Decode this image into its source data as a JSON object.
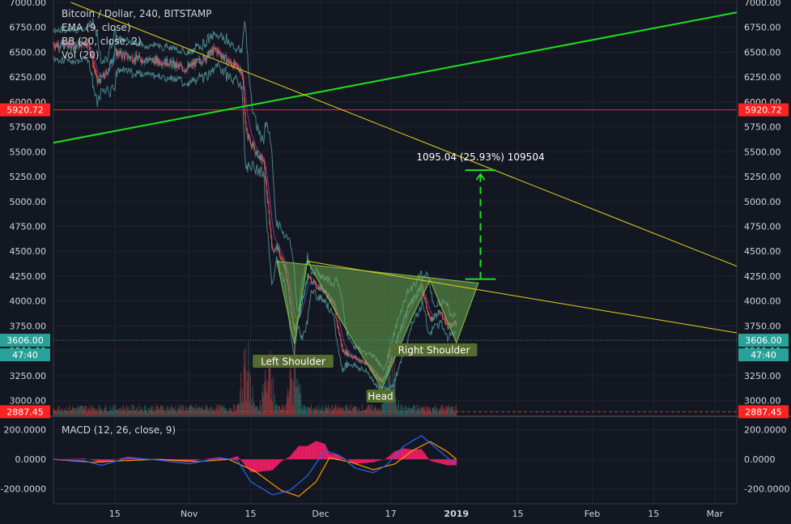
{
  "header": {
    "title": "Bitcoin / Dollar, 240, BITSTAMP",
    "indicators": [
      "EMA (9, close)",
      "BB (20, close, 2)",
      "Vol (20)"
    ]
  },
  "macd_title": "MACD (12, 26, close, 9)",
  "colors": {
    "background": "#131722",
    "grid": "#1f2330",
    "axis_text": "#d1d4dc",
    "up_candle": "#26a69a",
    "down_candle": "#ef5350",
    "green_trendline": "#1ee01e",
    "yellow_trendline": "#e6d21a",
    "horizontal_red": "#ff2222",
    "pattern_fill": "#6aa84f",
    "measure": "#22dd22",
    "label_bg": "#556b2f",
    "current_price": "#2aa198",
    "macd_line": "#2962ff",
    "signal_line": "#ff9800",
    "histogram": "#e91e63"
  },
  "chart_data": [
    {
      "type": "candlestick",
      "title": "Bitcoin / Dollar, 240, BITSTAMP",
      "y_ticks": [
        7000,
        6750,
        6500,
        6250,
        6000,
        5750,
        5500,
        5250,
        5000,
        4750,
        4500,
        4250,
        4000,
        3750,
        3500,
        3250,
        3000
      ],
      "y_tick_labels": [
        "7000.00",
        "6750.00",
        "6500.00",
        "6250.00",
        "6000.00",
        "5750.00",
        "5500.00",
        "5250.00",
        "5000.00",
        "4750.00",
        "4500.00",
        "4250.00",
        "4000.00",
        "3750.00",
        "3500.00",
        "3250.00",
        "3000.00"
      ],
      "ylim": [
        2850,
        7000
      ],
      "x_ticks": [
        "15",
        "Nov",
        "15",
        "Dec",
        "17",
        "2019",
        "15",
        "Feb",
        "15",
        "Mar"
      ],
      "x_tick_dates": [
        "2018-10-15",
        "2018-11-01",
        "2018-11-15",
        "2018-12-01",
        "2018-12-17",
        "2019-01-01",
        "2019-01-15",
        "2019-02-01",
        "2019-02-15",
        "2019-03-01"
      ],
      "xlim": [
        "2018-10-01",
        "2019-03-06"
      ],
      "price_path": [
        [
          "2018-10-01",
          6580
        ],
        [
          "2018-10-05",
          6560
        ],
        [
          "2018-10-09",
          6600
        ],
        [
          "2018-10-11",
          6200
        ],
        [
          "2018-10-13",
          6280
        ],
        [
          "2018-10-15",
          6500
        ],
        [
          "2018-10-19",
          6440
        ],
        [
          "2018-10-23",
          6420
        ],
        [
          "2018-10-27",
          6400
        ],
        [
          "2018-10-31",
          6330
        ],
        [
          "2018-11-04",
          6430
        ],
        [
          "2018-11-07",
          6530
        ],
        [
          "2018-11-10",
          6400
        ],
        [
          "2018-11-13",
          6320
        ],
        [
          "2018-11-14",
          5700
        ],
        [
          "2018-11-16",
          5500
        ],
        [
          "2018-11-18",
          5400
        ],
        [
          "2018-11-19",
          4950
        ],
        [
          "2018-11-20",
          4500
        ],
        [
          "2018-11-21",
          4550
        ],
        [
          "2018-11-23",
          4300
        ],
        [
          "2018-11-25",
          3700
        ],
        [
          "2018-11-26",
          3850
        ],
        [
          "2018-11-28",
          4250
        ],
        [
          "2018-11-30",
          4150
        ],
        [
          "2018-12-02",
          4100
        ],
        [
          "2018-12-04",
          3950
        ],
        [
          "2018-12-06",
          3500
        ],
        [
          "2018-12-08",
          3450
        ],
        [
          "2018-12-10",
          3400
        ],
        [
          "2018-12-12",
          3350
        ],
        [
          "2018-12-15",
          3180
        ],
        [
          "2018-12-17",
          3400
        ],
        [
          "2018-12-19",
          3700
        ],
        [
          "2018-12-21",
          3950
        ],
        [
          "2018-12-24",
          4150
        ],
        [
          "2018-12-26",
          3800
        ],
        [
          "2018-12-28",
          3900
        ],
        [
          "2018-12-30",
          3750
        ],
        [
          "2019-01-01",
          3780
        ]
      ],
      "volume_peaks": [
        "2018-11-14",
        "2018-11-19",
        "2018-11-25",
        "2018-12-17"
      ],
      "horizontal_lines": [
        {
          "price": 5920.72,
          "label": "5920.72",
          "style": "solid"
        },
        {
          "price": 3606.0,
          "label": "3606.00",
          "style": "dotted"
        },
        {
          "price": 2887.45,
          "label": "2887.45",
          "style": "dashed"
        }
      ],
      "countdown_label": "47:40",
      "trendlines": [
        {
          "name": "green_support",
          "from": [
            "2018-10-01",
            5590
          ],
          "to": [
            "2019-03-06",
            6900
          ]
        },
        {
          "name": "yellow_downtrend",
          "from": [
            "2018-10-05",
            7000
          ],
          "to": [
            "2019-03-06",
            4350
          ]
        },
        {
          "name": "neckline",
          "from": [
            "2018-11-28",
            4400
          ],
          "to": [
            "2019-03-06",
            3680
          ]
        }
      ],
      "pattern": {
        "name": "inverse head and shoulders",
        "points": [
          [
            "2018-11-21",
            4400
          ],
          [
            "2018-11-25",
            3570
          ],
          [
            "2018-11-28",
            4400
          ],
          [
            "2018-12-05",
            3850
          ],
          [
            "2018-12-15",
            3120
          ],
          [
            "2018-12-22",
            3850
          ],
          [
            "2018-12-26",
            4210
          ],
          [
            "2019-01-01",
            3580
          ],
          [
            "2019-01-06",
            4180
          ]
        ],
        "labels": {
          "left": "Left Shoulder",
          "head": "Head",
          "right": "Right Shoulder"
        }
      },
      "measurement": {
        "from_price": 4220,
        "to_price": 5315,
        "date_start": "2019-01-03",
        "date_end": "2019-01-10",
        "label": "1095.04 (25.93%) 109504"
      },
      "right_axis_countdown": "47:40"
    },
    {
      "type": "line",
      "title": "MACD (12, 26, close, 9)",
      "y_ticks": [
        200,
        0,
        -200
      ],
      "y_tick_labels": [
        "200.0000",
        "0.0000",
        "-200.0000"
      ],
      "ylim": [
        -300,
        280
      ],
      "series": [
        {
          "name": "MACD",
          "values": [
            [
              "2018-10-01",
              0
            ],
            [
              "2018-10-08",
              -10
            ],
            [
              "2018-10-12",
              -40
            ],
            [
              "2018-10-18",
              10
            ],
            [
              "2018-10-25",
              -5
            ],
            [
              "2018-11-01",
              -30
            ],
            [
              "2018-11-08",
              10
            ],
            [
              "2018-11-12",
              -5
            ],
            [
              "2018-11-15",
              -150
            ],
            [
              "2018-11-20",
              -240
            ],
            [
              "2018-11-24",
              -210
            ],
            [
              "2018-11-28",
              -110
            ],
            [
              "2018-12-02",
              60
            ],
            [
              "2018-12-05",
              30
            ],
            [
              "2018-12-09",
              -60
            ],
            [
              "2018-12-13",
              -90
            ],
            [
              "2018-12-16",
              -40
            ],
            [
              "2018-12-20",
              90
            ],
            [
              "2018-12-24",
              160
            ],
            [
              "2018-12-28",
              60
            ],
            [
              "2019-01-01",
              -40
            ]
          ]
        },
        {
          "name": "Signal",
          "values": [
            [
              "2018-10-01",
              0
            ],
            [
              "2018-10-10",
              -20
            ],
            [
              "2018-10-16",
              -10
            ],
            [
              "2018-10-25",
              0
            ],
            [
              "2018-11-03",
              -15
            ],
            [
              "2018-11-10",
              0
            ],
            [
              "2018-11-16",
              -80
            ],
            [
              "2018-11-22",
              -210
            ],
            [
              "2018-11-26",
              -250
            ],
            [
              "2018-11-30",
              -150
            ],
            [
              "2018-12-03",
              10
            ],
            [
              "2018-12-08",
              -20
            ],
            [
              "2018-12-13",
              -70
            ],
            [
              "2018-12-18",
              -30
            ],
            [
              "2018-12-22",
              60
            ],
            [
              "2018-12-26",
              120
            ],
            [
              "2018-12-30",
              50
            ],
            [
              "2019-01-01",
              0
            ]
          ]
        }
      ]
    }
  ]
}
